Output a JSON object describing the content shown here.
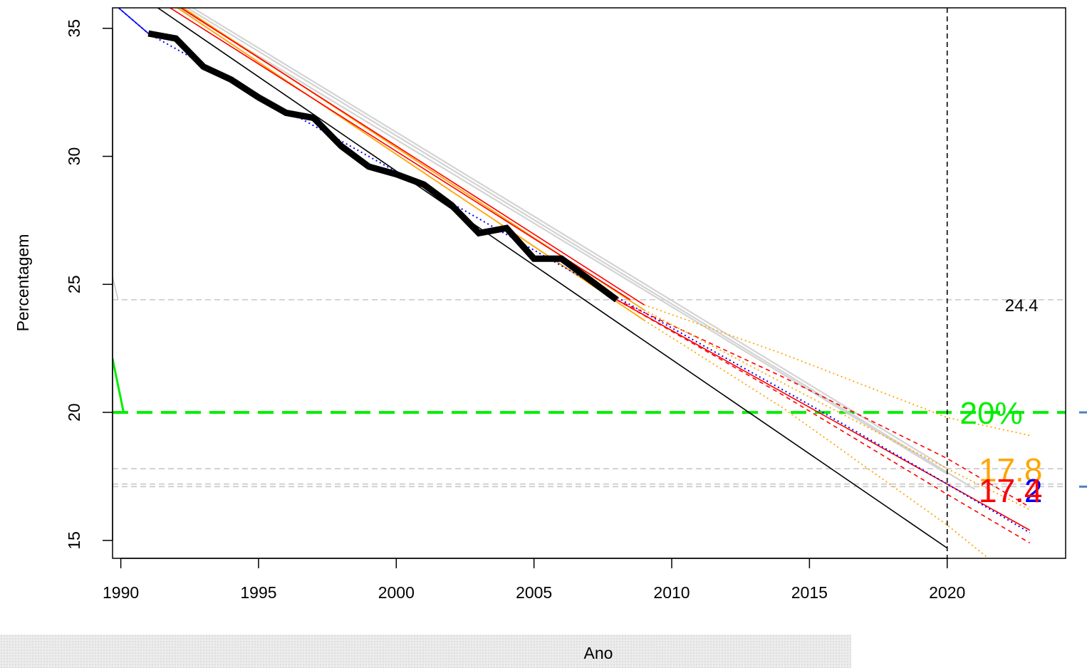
{
  "chart_data": {
    "type": "line",
    "title": "",
    "xlabel": "Ano",
    "ylabel": "Percentagem",
    "xlim": [
      1989.7,
      2024.3
    ],
    "ylim": [
      14.3,
      35.8
    ],
    "x_ticks": [
      1990,
      1995,
      2000,
      2005,
      2010,
      2015,
      2020
    ],
    "y_ticks": [
      15,
      20,
      25,
      30,
      35
    ],
    "vertical_reference": 2020,
    "horizontal_references": [
      {
        "value": 24.4,
        "label": "24.4",
        "color": "#c8c8c8"
      },
      {
        "value": 20,
        "label": "20%",
        "color": "#00ee00"
      },
      {
        "value": 17.8,
        "label": "",
        "color": "#c8c8c8"
      },
      {
        "value": 17.2,
        "label": "",
        "color": "#c8c8c8"
      },
      {
        "value": 17.1,
        "label": "",
        "color": "#c8c8c8"
      }
    ],
    "end_labels": [
      {
        "text": "17.8",
        "color": "#ffa500",
        "y": 17.8
      },
      {
        "text": "17.2",
        "color": "#0000ff",
        "y": 17.0
      },
      {
        "text": "17.4",
        "color": "#ff0000",
        "y": 17.0
      }
    ],
    "observed": {
      "color": "#000000",
      "x": [
        1991,
        1992,
        1993,
        1994,
        1995,
        1996,
        1997,
        1998,
        1999,
        2000,
        2001,
        2002,
        2003,
        2004,
        2005,
        2006,
        2007,
        2008
      ],
      "y": [
        34.8,
        34.6,
        33.5,
        33.0,
        32.3,
        31.7,
        31.5,
        30.4,
        29.6,
        29.3,
        28.9,
        28.1,
        27.0,
        27.2,
        26.0,
        26.0,
        25.2,
        24.4
      ]
    },
    "trend_lines": [
      {
        "color": "#000000",
        "width": 1.6,
        "x": [
          1990.8,
          2020
        ],
        "y": [
          36.2,
          14.7
        ]
      },
      {
        "color": "#d3d3d3",
        "width": 2.2,
        "x": [
          1991.5,
          2020
        ],
        "y": [
          36.2,
          17.6
        ]
      },
      {
        "color": "#d3d3d3",
        "width": 2.2,
        "x": [
          1992.0,
          2020
        ],
        "y": [
          36.2,
          17.8
        ]
      },
      {
        "color": "#d3d3d3",
        "width": 2.2,
        "x": [
          1991.8,
          2021
        ],
        "y": [
          36.2,
          17.0
        ]
      },
      {
        "color": "#ffa500",
        "width": 1.8,
        "x": [
          1991.5,
          2009
        ],
        "y": [
          36.2,
          23.6
        ]
      },
      {
        "color": "#ffa500",
        "width": 1.8,
        "x": [
          1991.7,
          2009
        ],
        "y": [
          36.2,
          24.0
        ]
      },
      {
        "color": "#ff0000",
        "width": 1.6,
        "x": [
          1991.2,
          2008.5
        ],
        "y": [
          36.2,
          24.4
        ]
      },
      {
        "color": "#ff0000",
        "width": 1.6,
        "x": [
          1991.6,
          2009
        ],
        "y": [
          36.2,
          24.2
        ]
      },
      {
        "color": "#ff0000",
        "width": 1.6,
        "x": [
          2008,
          2023
        ],
        "y": [
          24.4,
          15.4
        ]
      }
    ],
    "fit_lines": [
      {
        "color": "#0000ff",
        "dash": "2 4",
        "width": 2,
        "x": [
          1989.7,
          1991,
          2000,
          2008,
          2015,
          2020,
          2023
        ],
        "y": [
          36.0,
          34.8,
          29.4,
          24.5,
          20.3,
          17.2,
          15.3
        ]
      },
      {
        "color": "#0000ff",
        "dash": "",
        "width": 1.6,
        "x": [
          1989.7,
          1991
        ],
        "y": [
          36.0,
          34.8
        ]
      },
      {
        "color": "#ff0000",
        "dash": "6 5",
        "width": 1.6,
        "x": [
          2008,
          2014,
          2020,
          2023
        ],
        "y": [
          24.4,
          21.4,
          18.2,
          16.3
        ]
      },
      {
        "color": "#ff0000",
        "dash": "6 5",
        "width": 1.6,
        "x": [
          2008,
          2014,
          2020,
          2023
        ],
        "y": [
          24.4,
          20.7,
          16.8,
          14.9
        ]
      },
      {
        "color": "#ffa500",
        "dash": "2 4",
        "width": 1.8,
        "x": [
          2009,
          2014,
          2020,
          2023
        ],
        "y": [
          24.2,
          22.3,
          19.8,
          19.1
        ]
      },
      {
        "color": "#ffa500",
        "dash": "2 4",
        "width": 1.8,
        "x": [
          2009,
          2014,
          2020,
          2021.5
        ],
        "y": [
          23.6,
          20.2,
          15.6,
          14.3
        ]
      },
      {
        "color": "#ffa500",
        "dash": "2 4",
        "width": 1.8,
        "x": [
          2009,
          2015,
          2020,
          2023
        ],
        "y": [
          24.0,
          20.6,
          17.8,
          16.2
        ]
      }
    ],
    "left_edge_lines": [
      {
        "color": "#c8c8c8",
        "x": [
          1989.7,
          1989.9
        ],
        "y": [
          25.3,
          24.4
        ]
      },
      {
        "color": "#00ee00",
        "x": [
          1989.7,
          1990.1
        ],
        "y": [
          22.1,
          20.0
        ]
      }
    ],
    "margin_dashes": [
      {
        "color": "#4f81bd",
        "y": 20.0
      },
      {
        "color": "#4f81bd",
        "y": 17.1
      }
    ]
  }
}
